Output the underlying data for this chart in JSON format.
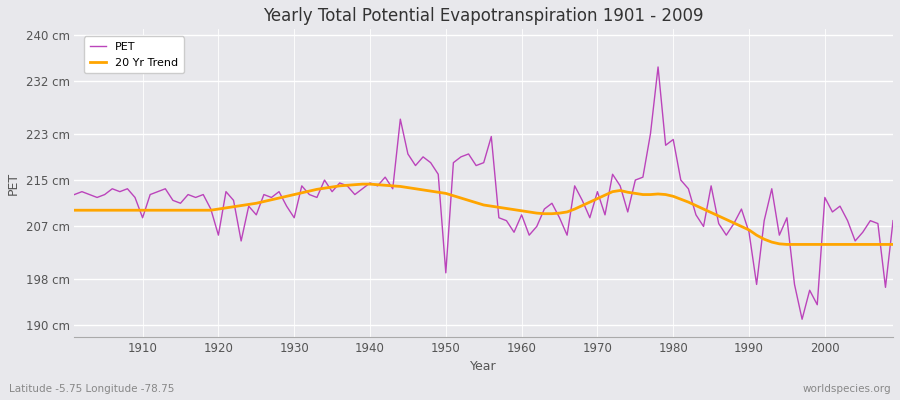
{
  "title": "Yearly Total Potential Evapotranspiration 1901 - 2009",
  "ylabel": "PET",
  "xlabel": "Year",
  "bottom_left_label": "Latitude -5.75 Longitude -78.75",
  "bottom_right_label": "worldspecies.org",
  "pet_color": "#bb44bb",
  "trend_color": "#ffa500",
  "background_color": "#e8e8ec",
  "grid_color": "#ffffff",
  "ylim": [
    188,
    241
  ],
  "yticks": [
    190,
    198,
    207,
    215,
    223,
    232,
    240
  ],
  "ytick_labels": [
    "190 cm",
    "198 cm",
    "207 cm",
    "215 cm",
    "223 cm",
    "232 cm",
    "240 cm"
  ],
  "xticks": [
    1910,
    1920,
    1930,
    1940,
    1950,
    1960,
    1970,
    1980,
    1990,
    2000
  ],
  "years": [
    1901,
    1902,
    1903,
    1904,
    1905,
    1906,
    1907,
    1908,
    1909,
    1910,
    1911,
    1912,
    1913,
    1914,
    1915,
    1916,
    1917,
    1918,
    1919,
    1920,
    1921,
    1922,
    1923,
    1924,
    1925,
    1926,
    1927,
    1928,
    1929,
    1930,
    1931,
    1932,
    1933,
    1934,
    1935,
    1936,
    1937,
    1938,
    1939,
    1940,
    1941,
    1942,
    1943,
    1944,
    1945,
    1946,
    1947,
    1948,
    1949,
    1950,
    1951,
    1952,
    1953,
    1954,
    1955,
    1956,
    1957,
    1958,
    1959,
    1960,
    1961,
    1962,
    1963,
    1964,
    1965,
    1966,
    1967,
    1968,
    1969,
    1970,
    1971,
    1972,
    1973,
    1974,
    1975,
    1976,
    1977,
    1978,
    1979,
    1980,
    1981,
    1982,
    1983,
    1984,
    1985,
    1986,
    1987,
    1988,
    1989,
    1990,
    1991,
    1992,
    1993,
    1994,
    1995,
    1996,
    1997,
    1998,
    1999,
    2000,
    2001,
    2002,
    2003,
    2004,
    2005,
    2006,
    2007,
    2008,
    2009
  ],
  "pet_values": [
    212.5,
    213.0,
    212.5,
    212.0,
    212.5,
    213.5,
    213.0,
    213.5,
    212.0,
    208.5,
    212.5,
    213.0,
    213.5,
    211.5,
    211.0,
    212.5,
    212.0,
    212.5,
    210.0,
    205.5,
    213.0,
    211.5,
    204.5,
    210.5,
    209.0,
    212.5,
    212.0,
    213.0,
    210.5,
    208.5,
    214.0,
    212.5,
    212.0,
    215.0,
    213.0,
    214.5,
    214.0,
    212.5,
    213.5,
    214.5,
    214.0,
    215.5,
    213.5,
    225.5,
    219.5,
    217.5,
    219.0,
    218.0,
    216.0,
    199.0,
    218.0,
    219.0,
    219.5,
    217.5,
    218.0,
    222.5,
    208.5,
    208.0,
    206.0,
    209.0,
    205.5,
    207.0,
    210.0,
    211.0,
    208.5,
    205.5,
    214.0,
    211.5,
    208.5,
    213.0,
    209.0,
    216.0,
    214.0,
    209.5,
    215.0,
    215.5,
    223.0,
    234.5,
    221.0,
    222.0,
    215.0,
    213.5,
    209.0,
    207.0,
    214.0,
    207.5,
    205.5,
    207.5,
    210.0,
    206.0,
    197.0,
    208.0,
    213.5,
    205.5,
    208.5,
    197.0,
    191.0,
    196.0,
    193.5,
    212.0,
    209.5,
    210.5,
    208.0,
    204.5,
    206.0,
    208.0,
    207.5,
    196.5,
    208.0
  ],
  "trend_values": [
    209.8,
    209.8,
    209.8,
    209.8,
    209.8,
    209.8,
    209.8,
    209.8,
    209.8,
    209.8,
    209.8,
    209.8,
    209.8,
    209.8,
    209.8,
    209.8,
    209.8,
    209.8,
    209.8,
    210.0,
    210.2,
    210.4,
    210.6,
    210.8,
    211.0,
    211.3,
    211.6,
    211.9,
    212.2,
    212.5,
    212.8,
    213.1,
    213.4,
    213.6,
    213.8,
    214.0,
    214.1,
    214.2,
    214.3,
    214.3,
    214.2,
    214.1,
    214.0,
    213.9,
    213.7,
    213.5,
    213.3,
    213.1,
    212.9,
    212.7,
    212.3,
    211.9,
    211.5,
    211.1,
    210.7,
    210.5,
    210.3,
    210.1,
    209.9,
    209.7,
    209.5,
    209.3,
    209.2,
    209.2,
    209.3,
    209.5,
    210.0,
    210.6,
    211.2,
    211.8,
    212.4,
    213.0,
    213.2,
    212.9,
    212.7,
    212.5,
    212.5,
    212.6,
    212.5,
    212.2,
    211.7,
    211.2,
    210.6,
    210.0,
    209.4,
    208.8,
    208.2,
    207.6,
    207.0,
    206.4,
    205.5,
    204.8,
    204.3,
    204.0,
    203.9,
    203.9,
    203.9,
    203.9,
    203.9,
    203.9,
    203.9,
    203.9,
    203.9,
    203.9,
    203.9,
    203.9,
    203.9,
    203.9,
    203.9
  ]
}
